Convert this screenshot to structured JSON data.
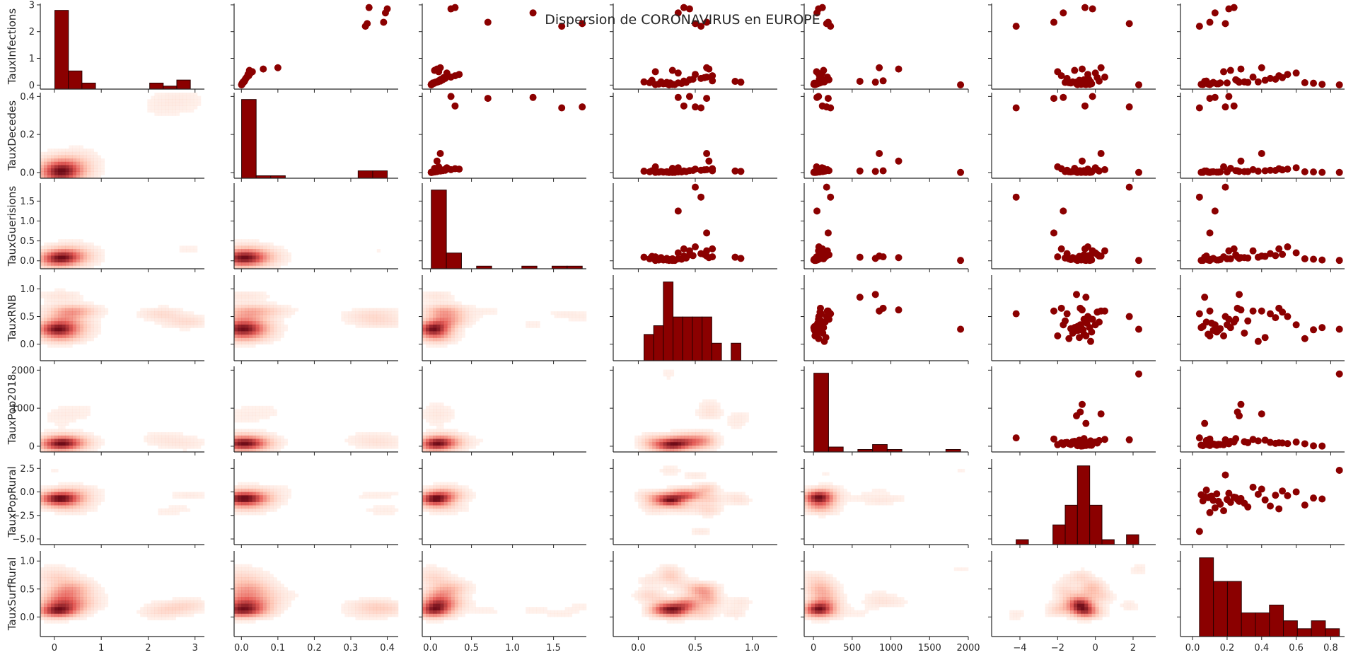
{
  "title": "Dispersion de CORONAVIRUS en EUROPE",
  "colors": {
    "marker": "#8b0000",
    "bar_edge": "#2a0000",
    "axis": "#262626"
  },
  "chart_data": {
    "type": "scatter",
    "variables": [
      "TauxInfections",
      "TauxDecedes",
      "TauxGuerisions",
      "TauxRNB",
      "TauxPop2018",
      "TauxPopRural",
      "TauxSurfRural"
    ],
    "x_ranges": [
      [
        -0.3,
        3.2
      ],
      [
        -0.02,
        0.43
      ],
      [
        -0.1,
        1.9
      ],
      [
        -0.22,
        1.22
      ],
      [
        -120,
        2000
      ],
      [
        -5.5,
        3.2
      ],
      [
        -0.07,
        0.88
      ]
    ],
    "y_ranges": [
      [
        -0.15,
        3.05
      ],
      [
        -0.03,
        0.42
      ],
      [
        -0.2,
        1.95
      ],
      [
        -0.3,
        1.25
      ],
      [
        -150,
        2100
      ],
      [
        -5.6,
        3.5
      ],
      [
        -0.35,
        1.18
      ]
    ],
    "x_ticks": [
      [
        0,
        1,
        2,
        3
      ],
      [
        0.0,
        0.1,
        0.2,
        0.3,
        0.4
      ],
      [
        0.0,
        0.5,
        1.0,
        1.5
      ],
      [
        0.0,
        0.5,
        1.0
      ],
      [
        0,
        500,
        1000,
        1500,
        2000
      ],
      [
        -4,
        -2,
        0,
        2
      ],
      [
        0.0,
        0.2,
        0.4,
        0.6,
        0.8
      ]
    ],
    "x_tick_labels": [
      [
        "0",
        "1",
        "2",
        "3"
      ],
      [
        "0.0",
        "0.1",
        "0.2",
        "0.3",
        "0.4"
      ],
      [
        "0.0",
        "0.5",
        "1.0",
        "1.5"
      ],
      [
        "0.0",
        "0.5",
        "1.0"
      ],
      [
        "0",
        "500",
        "1000",
        "1500",
        "2000"
      ],
      [
        "−4",
        "−2",
        "0",
        "2"
      ],
      [
        "0.0",
        "0.2",
        "0.4",
        "0.6",
        "0.8"
      ]
    ],
    "y_ticks": [
      [
        0,
        1,
        2,
        3
      ],
      [
        0.0,
        0.2,
        0.4
      ],
      [
        0.0,
        0.5,
        1.0,
        1.5
      ],
      [
        0.0,
        0.5,
        1.0
      ],
      [
        0,
        1000,
        2000
      ],
      [
        -5.0,
        -2.5,
        0.0,
        2.5
      ],
      [
        0.0,
        0.5,
        1.0
      ]
    ],
    "y_tick_labels": [
      [
        "0",
        "1",
        "2",
        "3"
      ],
      [
        "0.0",
        "0.2",
        "0.4"
      ],
      [
        "0.0",
        "0.5",
        "1.0",
        "1.5"
      ],
      [
        "0.0",
        "0.5",
        "1.0"
      ],
      [
        "0",
        "1000",
        "2000"
      ],
      [
        "−5.0",
        "−2.5",
        "0.0",
        "2.5"
      ],
      [
        "0.0",
        "0.5",
        "1.0"
      ]
    ],
    "upper": "scatter",
    "diagonal": "histogram",
    "lower": "kde contours (Reds)",
    "data": {
      "TauxInfections": [
        0.02,
        0.05,
        0.08,
        0.12,
        0.03,
        0.15,
        0.2,
        0.25,
        0.1,
        0.3,
        0.35,
        0.4,
        0.45,
        0.5,
        0.55,
        0.6,
        0.65,
        0.05,
        0.08,
        0.02,
        0.04,
        0.06,
        0.1,
        0.12,
        0.18,
        0.22,
        0.28,
        0.09,
        0.07,
        0.03,
        0.01,
        0.11,
        0.14,
        0.16,
        2.2,
        2.3,
        2.35,
        2.7,
        2.85,
        2.9
      ],
      "TauxDecedes": [
        0.001,
        0.002,
        0.003,
        0.005,
        0.001,
        0.008,
        0.01,
        0.012,
        0.004,
        0.015,
        0.02,
        0.018,
        0.025,
        0.03,
        0.022,
        0.06,
        0.1,
        0.002,
        0.003,
        0.001,
        0.002,
        0.003,
        0.005,
        0.007,
        0.009,
        0.011,
        0.014,
        0.004,
        0.003,
        0.001,
        0.0005,
        0.006,
        0.008,
        0.009,
        0.34,
        0.345,
        0.39,
        0.395,
        0.4,
        0.35
      ],
      "TauxGuerisions": [
        0.01,
        0.02,
        0.05,
        0.08,
        0.01,
        0.12,
        0.15,
        0.18,
        0.06,
        0.25,
        0.3,
        0.35,
        0.2,
        0.1,
        0.05,
        0.08,
        0.12,
        0.02,
        0.03,
        0.01,
        0.02,
        0.04,
        0.07,
        0.09,
        0.11,
        0.13,
        0.16,
        0.05,
        0.04,
        0.02,
        0.01,
        0.06,
        0.09,
        0.1,
        1.6,
        1.85,
        0.7,
        1.25,
        0.25,
        0.3
      ],
      "TauxRNB": [
        0.15,
        0.25,
        0.35,
        0.2,
        0.3,
        0.4,
        0.45,
        0.55,
        0.25,
        0.6,
        0.65,
        0.5,
        0.35,
        0.15,
        0.3,
        0.62,
        0.6,
        0.22,
        0.28,
        0.32,
        0.18,
        0.38,
        0.42,
        0.05,
        0.12,
        0.48,
        0.58,
        0.1,
        0.26,
        0.3,
        0.27,
        0.9,
        0.85,
        0.65,
        0.55,
        0.5,
        0.6,
        0.35,
        0.45,
        0.4
      ],
      "TauxPop2018": [
        20,
        50,
        80,
        120,
        30,
        150,
        200,
        100,
        60,
        180,
        90,
        70,
        110,
        40,
        130,
        1100,
        850,
        25,
        45,
        15,
        35,
        55,
        95,
        140,
        160,
        75,
        85,
        65,
        10,
        5,
        1900,
        800,
        600,
        900,
        220,
        170,
        190,
        45,
        65,
        115
      ],
      "TauxPopRural": [
        -0.5,
        -1.0,
        -0.8,
        -1.2,
        -0.3,
        0.2,
        -0.6,
        -1.5,
        -0.9,
        0.5,
        -1.8,
        -0.4,
        0.0,
        -2.0,
        -1.1,
        -0.7,
        0.3,
        -0.2,
        -1.3,
        -0.95,
        -0.6,
        -0.45,
        -1.6,
        -0.25,
        -0.85,
        -0.35,
        0.1,
        -1.4,
        -0.65,
        -0.75,
        2.3,
        -1.0,
        -0.5,
        -0.8,
        -4.2,
        1.8,
        -2.2,
        -1.7,
        -0.15,
        -0.55
      ],
      "TauxSurfRural": [
        0.1,
        0.15,
        0.2,
        0.3,
        0.05,
        0.08,
        0.25,
        0.45,
        0.12,
        0.35,
        0.5,
        0.55,
        0.6,
        0.18,
        0.22,
        0.28,
        0.4,
        0.14,
        0.16,
        0.06,
        0.09,
        0.11,
        0.32,
        0.38,
        0.42,
        0.48,
        0.52,
        0.65,
        0.7,
        0.75,
        0.85,
        0.27,
        0.07,
        0.26,
        0.04,
        0.19,
        0.1,
        0.13,
        0.21,
        0.24
      ]
    }
  }
}
